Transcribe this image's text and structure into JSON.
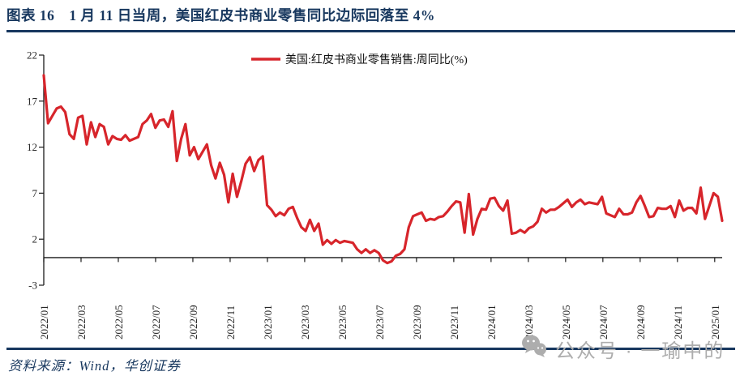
{
  "page": {
    "title": "图表 16　1 月 11 日当周，美国红皮书商业零售同比边际回落至 4%",
    "source": "资料来源：Wind，华创证券",
    "watermark": "公众号 · 一瑜中的"
  },
  "colors": {
    "navy": "#17375E",
    "line_red": "#D7252B",
    "axis": "#1a1a1a",
    "tick_label": "#262626",
    "watermark_gray": "#ADADAD"
  },
  "chart_data": {
    "type": "line",
    "legend": "美国:红皮书商业零售销售:周同比(%)",
    "unit": "%",
    "frequency": "weekly",
    "highlight": {
      "week": "1月11日当周",
      "value": 4
    },
    "ylim": [
      -3,
      22
    ],
    "yticks": [
      22,
      17,
      12,
      7,
      2,
      -3
    ],
    "grid": false,
    "zero_line": true,
    "legend_position": "top-center",
    "categories": [
      "2022/01",
      "2022/03",
      "2022/05",
      "2022/07",
      "2022/09",
      "2022/11",
      "2023/01",
      "2023/03",
      "2023/05",
      "2023/07",
      "2023/09",
      "2023/11",
      "2024/01",
      "2024/03",
      "2024/05",
      "2024/07",
      "2024/09",
      "2024/11",
      "2025/01"
    ],
    "series": [
      {
        "name": "美国:红皮书商业零售销售:周同比(%)",
        "start": "2022/01",
        "end": "2025/01/11",
        "values": [
          19.8,
          14.6,
          15.4,
          16.2,
          16.4,
          15.8,
          13.4,
          12.9,
          15.2,
          15.4,
          12.3,
          14.7,
          13.1,
          14.5,
          14.2,
          12.3,
          13.2,
          12.9,
          12.8,
          13.3,
          12.7,
          12.9,
          13.1,
          14.5,
          14.9,
          15.6,
          14.1,
          14.9,
          15.0,
          14.2,
          15.9,
          10.5,
          12.9,
          14.5,
          11.1,
          12.0,
          10.7,
          11.5,
          12.3,
          10.0,
          8.6,
          10.3,
          9.0,
          6.0,
          9.1,
          6.6,
          8.3,
          10.2,
          10.9,
          9.4,
          10.6,
          11.0,
          5.7,
          5.2,
          4.5,
          4.9,
          4.6,
          5.3,
          5.5,
          4.3,
          3.3,
          2.9,
          4.1,
          2.9,
          3.7,
          1.4,
          1.9,
          1.5,
          1.9,
          1.6,
          1.8,
          1.7,
          1.6,
          0.9,
          0.5,
          0.9,
          0.5,
          0.8,
          0.5,
          -0.3,
          -0.6,
          -0.4,
          0.2,
          0.4,
          0.9,
          3.3,
          4.5,
          4.7,
          4.9,
          4.0,
          4.2,
          4.1,
          4.4,
          4.5,
          5.0,
          5.6,
          6.1,
          6.0,
          2.7,
          6.9,
          2.5,
          4.2,
          5.3,
          5.2,
          6.4,
          6.5,
          5.6,
          5.1,
          6.2,
          2.6,
          2.7,
          3.0,
          2.7,
          3.2,
          3.4,
          3.9,
          5.3,
          4.9,
          5.2,
          5.2,
          5.5,
          5.9,
          6.3,
          5.5,
          6.0,
          6.3,
          5.8,
          6.0,
          5.9,
          5.8,
          6.6,
          4.8,
          4.6,
          4.4,
          5.3,
          4.7,
          4.7,
          4.9,
          6.0,
          6.7,
          5.6,
          4.4,
          4.5,
          5.4,
          5.3,
          5.3,
          5.6,
          4.4,
          6.2,
          5.1,
          5.4,
          5.4,
          4.8,
          7.6,
          4.2,
          5.6,
          7.0,
          6.6,
          4.0
        ]
      }
    ]
  }
}
